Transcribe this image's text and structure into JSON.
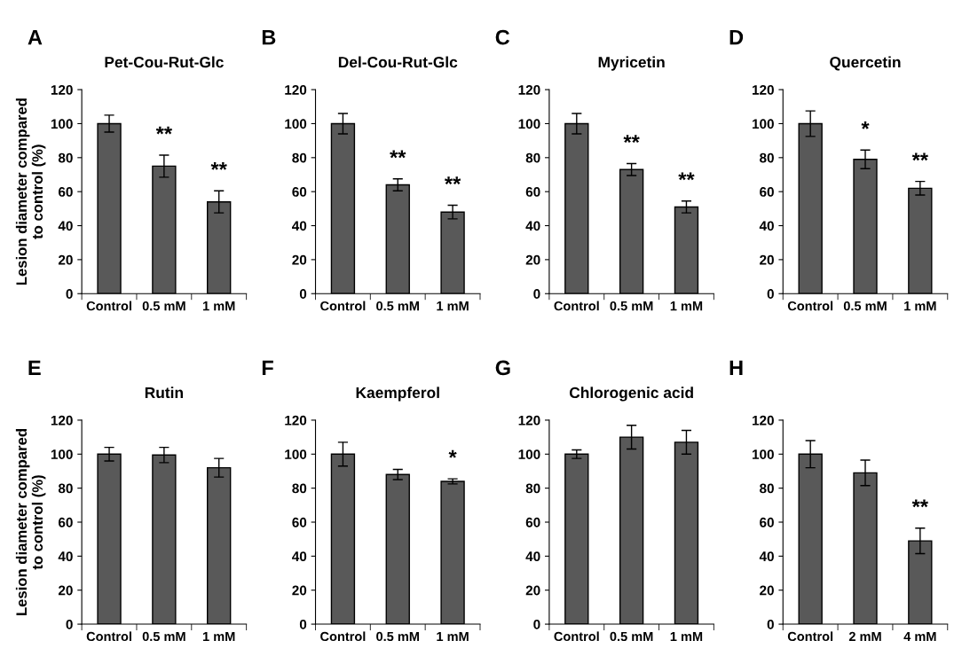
{
  "chart_data": [
    {
      "type": "bar",
      "title": "Pet-Cou-Rut-Glc",
      "ylabel": "Lesion diameter compared\nto control (%)",
      "categories": [
        "Control",
        "0.5 mM",
        "1 mM"
      ],
      "values": [
        100,
        75,
        54
      ],
      "errors": [
        5,
        6.5,
        6.5
      ],
      "color": "#595959",
      "ylim": [
        0,
        120
      ],
      "yticks": [
        0,
        20,
        40,
        60,
        80,
        100,
        120
      ],
      "grid": false,
      "annotations": [
        "A",
        {
          "text": "**",
          "x": "0.5 mM",
          "y": 75
        },
        {
          "text": "**",
          "x": "1 mM",
          "y": 54
        }
      ]
    },
    {
      "type": "bar",
      "title": "Del-Cou-Rut-Glc",
      "categories": [
        "Control",
        "0.5 mM",
        "1 mM"
      ],
      "values": [
        100,
        64,
        48
      ],
      "errors": [
        6,
        3.5,
        4
      ],
      "color": "#595959",
      "ylim": [
        0,
        120
      ],
      "yticks": [
        0,
        20,
        40,
        60,
        80,
        100,
        120
      ],
      "grid": false,
      "annotations": [
        "B",
        {
          "text": "**",
          "x": "0.5 mM",
          "y": 64
        },
        {
          "text": "**",
          "x": "1 mM",
          "y": 48
        }
      ]
    },
    {
      "type": "bar",
      "title": "Myricetin",
      "categories": [
        "Control",
        "0.5 mM",
        "1 mM"
      ],
      "values": [
        100,
        73,
        51
      ],
      "errors": [
        6,
        3.5,
        3.5
      ],
      "color": "#595959",
      "ylim": [
        0,
        120
      ],
      "yticks": [
        0,
        20,
        40,
        60,
        80,
        100,
        120
      ],
      "grid": false,
      "annotations": [
        "C",
        {
          "text": "**",
          "x": "0.5 mM",
          "y": 73
        },
        {
          "text": "**",
          "x": "1 mM",
          "y": 51
        }
      ]
    },
    {
      "type": "bar",
      "title": "Quercetin",
      "categories": [
        "Control",
        "0.5 mM",
        "1 mM"
      ],
      "values": [
        100,
        79,
        62
      ],
      "errors": [
        7.5,
        5.5,
        4
      ],
      "color": "#595959",
      "ylim": [
        0,
        120
      ],
      "yticks": [
        0,
        20,
        40,
        60,
        80,
        100,
        120
      ],
      "grid": false,
      "annotations": [
        "D",
        {
          "text": "*",
          "x": "0.5 mM",
          "y": 79
        },
        {
          "text": "**",
          "x": "1 mM",
          "y": 62
        }
      ]
    },
    {
      "type": "bar",
      "title": "Rutin",
      "ylabel": "Lesion diameter compared\nto control (%)",
      "categories": [
        "Control",
        "0.5 mM",
        "1 mM"
      ],
      "values": [
        100,
        99.5,
        92
      ],
      "errors": [
        4,
        4.5,
        5.5
      ],
      "color": "#595959",
      "ylim": [
        0,
        120
      ],
      "yticks": [
        0,
        20,
        40,
        60,
        80,
        100,
        120
      ],
      "grid": false,
      "annotations": [
        "E"
      ]
    },
    {
      "type": "bar",
      "title": "Kaempferol",
      "categories": [
        "Control",
        "0.5 mM",
        "1 mM"
      ],
      "values": [
        100,
        88,
        84
      ],
      "errors": [
        7,
        3,
        1.5
      ],
      "color": "#595959",
      "ylim": [
        0,
        120
      ],
      "yticks": [
        0,
        20,
        40,
        60,
        80,
        100,
        120
      ],
      "grid": false,
      "annotations": [
        "F",
        {
          "text": "*",
          "x": "1 mM",
          "y": 84
        }
      ]
    },
    {
      "type": "bar",
      "title": "Chlorogenic acid",
      "categories": [
        "Control",
        "0.5 mM",
        "1 mM"
      ],
      "values": [
        100,
        110,
        107
      ],
      "errors": [
        2.5,
        7,
        7
      ],
      "color": "#595959",
      "ylim": [
        0,
        120
      ],
      "yticks": [
        0,
        20,
        40,
        60,
        80,
        100,
        120
      ],
      "grid": false,
      "annotations": [
        "G"
      ]
    },
    {
      "type": "bar",
      "categories": [
        "Control",
        "2 mM",
        "4 mM"
      ],
      "values": [
        100,
        89,
        49
      ],
      "errors": [
        8,
        7.5,
        7.5
      ],
      "color": "#595959",
      "ylim": [
        0,
        120
      ],
      "yticks": [
        0,
        20,
        40,
        60,
        80,
        100,
        120
      ],
      "grid": false,
      "annotations": [
        "H",
        {
          "text": "**",
          "x": "4 mM",
          "y": 49
        }
      ]
    }
  ]
}
